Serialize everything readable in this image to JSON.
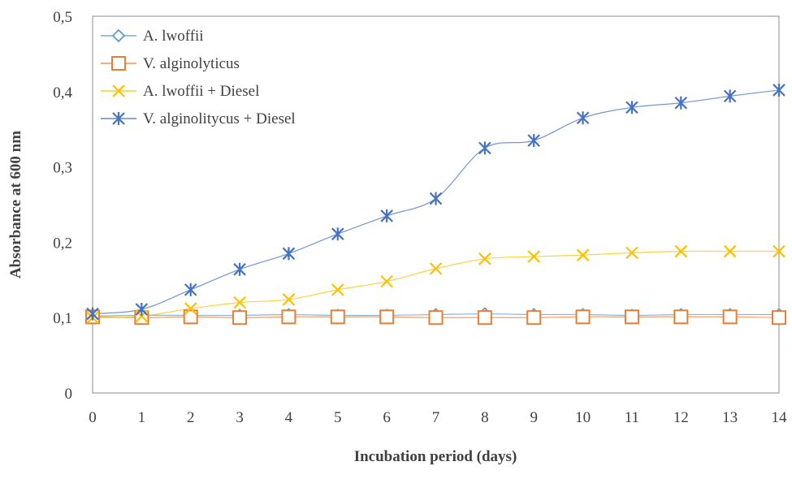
{
  "chart_data": {
    "type": "line",
    "xlabel": "Incubation period (days)",
    "ylabel": "Absorbance at 600 nm",
    "x": [
      0,
      1,
      2,
      3,
      4,
      5,
      6,
      7,
      8,
      9,
      10,
      11,
      12,
      13,
      14
    ],
    "xlim": [
      0,
      14
    ],
    "ylim": [
      0,
      0.5
    ],
    "y_ticks": [
      "0",
      "0,1",
      "0,2",
      "0,3",
      "0,4",
      "0,5"
    ],
    "x_ticks": [
      "0",
      "1",
      "2",
      "3",
      "4",
      "5",
      "6",
      "7",
      "8",
      "9",
      "10",
      "11",
      "12",
      "13",
      "14"
    ],
    "grid": false,
    "legend_position": "top-left",
    "series": [
      {
        "name": "A. lwoffii",
        "color": "#5B9BD5",
        "marker": "diamond",
        "values": [
          0.102,
          0.103,
          0.103,
          0.103,
          0.104,
          0.103,
          0.103,
          0.104,
          0.105,
          0.104,
          0.104,
          0.103,
          0.104,
          0.104,
          0.104
        ]
      },
      {
        "name": "V. alginolyticus",
        "color": "#ED7D31",
        "marker": "square",
        "values": [
          0.101,
          0.1,
          0.101,
          0.1,
          0.101,
          0.101,
          0.101,
          0.1,
          0.1,
          0.1,
          0.101,
          0.101,
          0.101,
          0.101,
          0.1
        ]
      },
      {
        "name": "A. lwoffii + Diesel",
        "color": "#FFC000",
        "marker": "x",
        "values": [
          0.1,
          0.102,
          0.112,
          0.12,
          0.124,
          0.137,
          0.148,
          0.165,
          0.178,
          0.181,
          0.183,
          0.186,
          0.188,
          0.188,
          0.188
        ]
      },
      {
        "name": "V. alginolitycus + Diesel",
        "color": "#4472C4",
        "marker": "star",
        "values": [
          0.105,
          0.111,
          0.137,
          0.164,
          0.185,
          0.211,
          0.235,
          0.258,
          0.325,
          0.335,
          0.365,
          0.379,
          0.385,
          0.394,
          0.402
        ]
      }
    ]
  }
}
